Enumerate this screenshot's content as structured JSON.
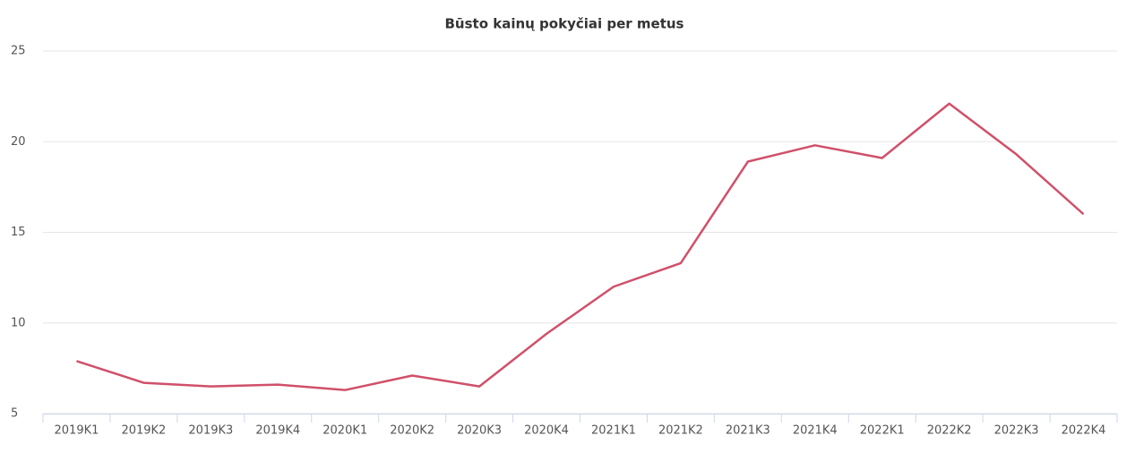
{
  "chart_data": {
    "type": "line",
    "title": "Būsto kainų pokyčiai per metus",
    "categories": [
      "2019K1",
      "2019K2",
      "2019K3",
      "2019K4",
      "2020K1",
      "2020K2",
      "2020K3",
      "2020K4",
      "2021K1",
      "2021K2",
      "2021K3",
      "2021K4",
      "2022K1",
      "2022K2",
      "2022K3",
      "2022K4"
    ],
    "series": [
      {
        "color": "#d0506a",
        "values": [
          7.9,
          6.7,
          6.5,
          6.6,
          6.3,
          7.1,
          6.5,
          9.4,
          12.0,
          13.3,
          18.9,
          19.8,
          19.1,
          22.1,
          19.3,
          16.0
        ]
      }
    ],
    "ylim": [
      5,
      25
    ],
    "yticks": [
      5,
      10,
      15,
      20,
      25
    ],
    "grid": true
  }
}
